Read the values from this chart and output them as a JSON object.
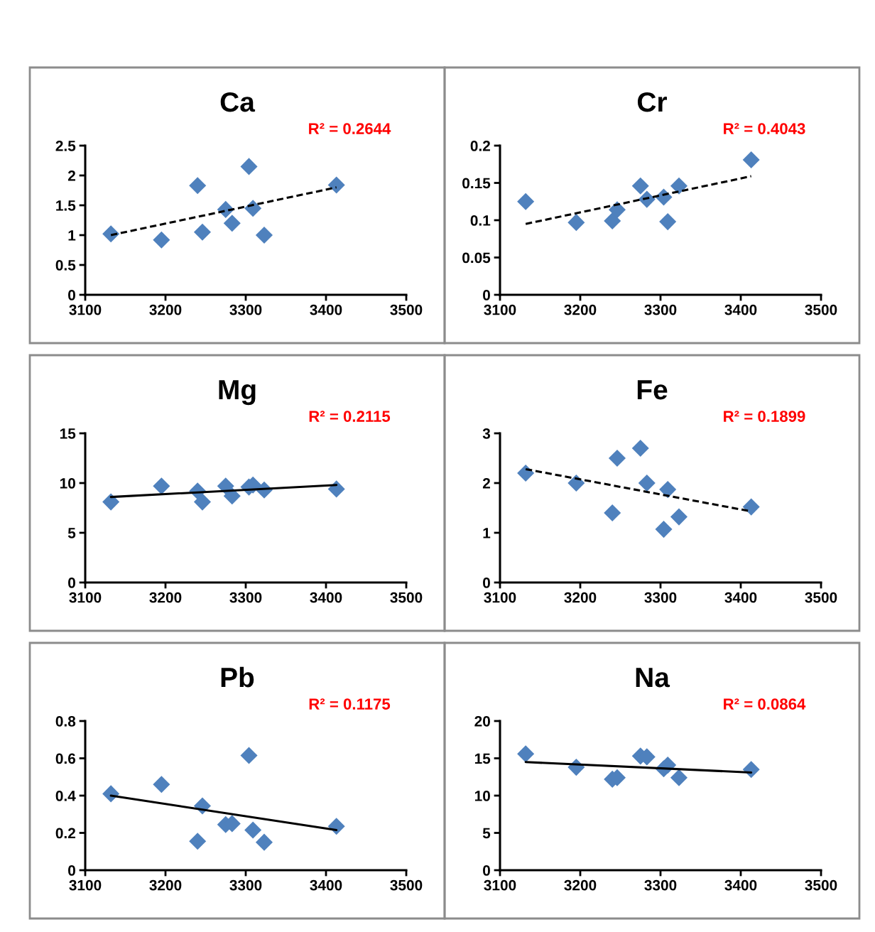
{
  "chart_data": [
    {
      "type": "scatter",
      "title": "Ca",
      "annotations": [
        "R² = 0.2644"
      ],
      "xlim": [
        3100,
        3500
      ],
      "xticks": [
        3100,
        3200,
        3300,
        3400,
        3500
      ],
      "ylim": [
        0,
        2.5
      ],
      "yticks": [
        0,
        0.5,
        1,
        1.5,
        2,
        2.5
      ],
      "grid": false,
      "legend": false,
      "series": [
        {
          "marker": "diamond",
          "color": "#4f81bd",
          "x": [
            3132,
            3195,
            3240,
            3246,
            3275,
            3283,
            3304,
            3309,
            3323,
            3413
          ],
          "values": [
            1.02,
            0.92,
            1.83,
            1.05,
            1.43,
            1.2,
            2.15,
            1.45,
            1.0,
            1.84
          ]
        },
        {
          "type": "line",
          "marker": "none",
          "color": "#000000",
          "line_style": "dashed",
          "x": [
            3132,
            3413
          ],
          "values": [
            1.0,
            1.8
          ]
        }
      ]
    },
    {
      "type": "scatter",
      "title": "Cr",
      "annotations": [
        "R² = 0.4043"
      ],
      "xlim": [
        3100,
        3500
      ],
      "xticks": [
        3100,
        3200,
        3300,
        3400,
        3500
      ],
      "ylim": [
        0,
        0.2
      ],
      "yticks": [
        0,
        0.05,
        0.1,
        0.15,
        0.2
      ],
      "grid": false,
      "legend": false,
      "series": [
        {
          "marker": "diamond",
          "color": "#4f81bd",
          "x": [
            3132,
            3195,
            3240,
            3246,
            3275,
            3283,
            3304,
            3309,
            3323,
            3413
          ],
          "values": [
            0.125,
            0.097,
            0.099,
            0.114,
            0.146,
            0.128,
            0.131,
            0.098,
            0.146,
            0.181
          ]
        },
        {
          "type": "line",
          "marker": "none",
          "color": "#000000",
          "line_style": "dashed",
          "x": [
            3132,
            3413
          ],
          "values": [
            0.095,
            0.159
          ]
        }
      ]
    },
    {
      "type": "scatter",
      "title": "Mg",
      "annotations": [
        "R² = 0.2115"
      ],
      "xlim": [
        3100,
        3500
      ],
      "xticks": [
        3100,
        3200,
        3300,
        3400,
        3500
      ],
      "ylim": [
        0,
        15
      ],
      "yticks": [
        0,
        5,
        10,
        15
      ],
      "grid": false,
      "legend": false,
      "series": [
        {
          "marker": "diamond",
          "color": "#4f81bd",
          "x": [
            3132,
            3195,
            3240,
            3246,
            3275,
            3283,
            3304,
            3309,
            3323,
            3413
          ],
          "values": [
            8.1,
            9.7,
            9.2,
            8.1,
            9.7,
            8.7,
            9.6,
            9.8,
            9.3,
            9.4
          ]
        },
        {
          "type": "line",
          "marker": "none",
          "color": "#000000",
          "line_style": "solid",
          "x": [
            3132,
            3413
          ],
          "values": [
            8.6,
            9.8
          ]
        }
      ]
    },
    {
      "type": "scatter",
      "title": "Fe",
      "annotations": [
        "R² = 0.1899"
      ],
      "xlim": [
        3100,
        3500
      ],
      "xticks": [
        3100,
        3200,
        3300,
        3400,
        3500
      ],
      "ylim": [
        0,
        3
      ],
      "yticks": [
        0,
        1,
        2,
        3
      ],
      "grid": false,
      "legend": false,
      "series": [
        {
          "marker": "diamond",
          "color": "#4f81bd",
          "x": [
            3132,
            3195,
            3240,
            3246,
            3275,
            3283,
            3304,
            3309,
            3323,
            3413
          ],
          "values": [
            2.2,
            2.0,
            1.4,
            2.5,
            2.7,
            2.0,
            1.07,
            1.87,
            1.32,
            1.52
          ]
        },
        {
          "type": "line",
          "marker": "none",
          "color": "#000000",
          "line_style": "dashed",
          "x": [
            3132,
            3413
          ],
          "values": [
            2.28,
            1.43
          ]
        }
      ]
    },
    {
      "type": "scatter",
      "title": "Pb",
      "annotations": [
        "R² = 0.1175"
      ],
      "xlim": [
        3100,
        3500
      ],
      "xticks": [
        3100,
        3200,
        3300,
        3400,
        3500
      ],
      "ylim": [
        0,
        0.8
      ],
      "yticks": [
        0,
        0.2,
        0.4,
        0.6,
        0.8
      ],
      "grid": false,
      "legend": false,
      "series": [
        {
          "marker": "diamond",
          "color": "#4f81bd",
          "x": [
            3132,
            3195,
            3240,
            3246,
            3275,
            3283,
            3304,
            3309,
            3323,
            3413
          ],
          "values": [
            0.41,
            0.46,
            0.155,
            0.345,
            0.245,
            0.25,
            0.615,
            0.215,
            0.15,
            0.235
          ]
        },
        {
          "type": "line",
          "marker": "none",
          "color": "#000000",
          "line_style": "solid",
          "x": [
            3132,
            3413
          ],
          "values": [
            0.4,
            0.215
          ]
        }
      ]
    },
    {
      "type": "scatter",
      "title": "Na",
      "annotations": [
        "R² = 0.0864"
      ],
      "xlim": [
        3100,
        3500
      ],
      "xticks": [
        3100,
        3200,
        3300,
        3400,
        3500
      ],
      "ylim": [
        0,
        20
      ],
      "yticks": [
        0,
        5,
        10,
        15,
        20
      ],
      "grid": false,
      "legend": false,
      "series": [
        {
          "marker": "diamond",
          "color": "#4f81bd",
          "x": [
            3132,
            3195,
            3240,
            3246,
            3275,
            3283,
            3304,
            3309,
            3323,
            3413
          ],
          "values": [
            15.6,
            13.8,
            12.2,
            12.4,
            15.3,
            15.2,
            13.6,
            14.1,
            12.4,
            13.5
          ]
        },
        {
          "type": "line",
          "marker": "none",
          "color": "#000000",
          "line_style": "solid",
          "x": [
            3132,
            3413
          ],
          "values": [
            14.5,
            13.1
          ]
        }
      ]
    }
  ]
}
